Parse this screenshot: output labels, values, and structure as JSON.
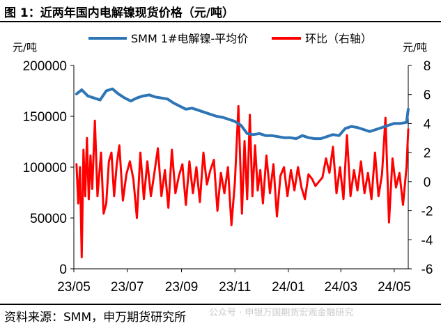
{
  "header": {
    "figure_label": "图 1：",
    "title": "近两年国内电解镍现货价格（元/吨）"
  },
  "footer": {
    "source": "资料来源：SMM，申万期货研究所",
    "watermark": "公众号 · 申银万国期货宏观金融研究"
  },
  "chart_data": {
    "type": "line",
    "left_axis_unit": "元/吨",
    "right_axis_unit": "元/吨",
    "y_left_ticks": [
      "200000",
      "150000",
      "100000",
      "50000",
      "0"
    ],
    "y_right_ticks": [
      "8",
      "6",
      "4",
      "2",
      "0",
      "-2",
      "-4",
      "-6"
    ],
    "x_ticks": [
      "23/05",
      "23/07",
      "23/09",
      "23/11",
      "24/01",
      "24/03",
      "24/05"
    ],
    "ylim_left": [
      0,
      200000
    ],
    "ylim_right": [
      -6,
      8
    ],
    "x_range": [
      "2023-05-01",
      "2024-05-17"
    ],
    "grid": false,
    "legend_position": "top",
    "series": [
      {
        "name": "SMM 1#电解镍-平均价",
        "axis": "left",
        "color": "#2E75B6",
        "x": [
          "2023-05-04",
          "2023-05-10",
          "2023-05-17",
          "2023-05-24",
          "2023-05-31",
          "2023-06-07",
          "2023-06-14",
          "2023-06-21",
          "2023-06-28",
          "2023-07-05",
          "2023-07-12",
          "2023-07-19",
          "2023-07-26",
          "2023-08-02",
          "2023-08-09",
          "2023-08-16",
          "2023-08-23",
          "2023-08-30",
          "2023-09-06",
          "2023-09-13",
          "2023-09-20",
          "2023-09-27",
          "2023-10-11",
          "2023-10-18",
          "2023-10-25",
          "2023-11-01",
          "2023-11-08",
          "2023-11-15",
          "2023-11-22",
          "2023-11-29",
          "2023-12-06",
          "2023-12-13",
          "2023-12-20",
          "2023-12-27",
          "2024-01-03",
          "2024-01-10",
          "2024-01-17",
          "2024-01-24",
          "2024-01-31",
          "2024-02-07",
          "2024-02-21",
          "2024-02-28",
          "2024-03-06",
          "2024-03-13",
          "2024-03-20",
          "2024-03-27",
          "2024-04-03",
          "2024-04-10",
          "2024-04-17",
          "2024-04-24",
          "2024-05-01",
          "2024-05-08",
          "2024-05-15",
          "2024-05-17"
        ],
        "values": [
          172000,
          176000,
          170000,
          168000,
          166000,
          175000,
          177000,
          172000,
          168000,
          165000,
          168000,
          170000,
          171000,
          169000,
          168000,
          167000,
          163000,
          160000,
          157000,
          158000,
          156000,
          154000,
          150000,
          149000,
          147000,
          145000,
          141000,
          133000,
          132000,
          133000,
          131000,
          131000,
          130000,
          129000,
          129000,
          128000,
          131000,
          129000,
          128000,
          128000,
          132000,
          131000,
          138000,
          140000,
          139000,
          137000,
          135000,
          137000,
          139000,
          141000,
          143000,
          143000,
          144000,
          157000
        ]
      },
      {
        "name": "环比（右轴）",
        "axis": "right",
        "color": "#FF0000",
        "x": [
          "2023-05-04",
          "2023-05-06",
          "2023-05-08",
          "2023-05-10",
          "2023-05-12",
          "2023-05-14",
          "2023-05-16",
          "2023-05-18",
          "2023-05-20",
          "2023-05-22",
          "2023-05-25",
          "2023-05-28",
          "2023-06-01",
          "2023-06-04",
          "2023-06-07",
          "2023-06-10",
          "2023-06-13",
          "2023-06-16",
          "2023-06-19",
          "2023-06-22",
          "2023-06-26",
          "2023-06-30",
          "2023-07-04",
          "2023-07-08",
          "2023-07-12",
          "2023-07-16",
          "2023-07-20",
          "2023-07-24",
          "2023-07-28",
          "2023-08-01",
          "2023-08-05",
          "2023-08-09",
          "2023-08-13",
          "2023-08-17",
          "2023-08-21",
          "2023-08-25",
          "2023-08-29",
          "2023-09-02",
          "2023-09-06",
          "2023-09-10",
          "2023-09-14",
          "2023-09-18",
          "2023-09-22",
          "2023-09-26",
          "2023-09-30",
          "2023-10-04",
          "2023-10-08",
          "2023-10-12",
          "2023-10-16",
          "2023-10-20",
          "2023-10-24",
          "2023-10-28",
          "2023-11-01",
          "2023-11-05",
          "2023-11-09",
          "2023-11-12",
          "2023-11-15",
          "2023-11-18",
          "2023-11-21",
          "2023-11-24",
          "2023-11-27",
          "2023-11-30",
          "2023-12-03",
          "2023-12-07",
          "2023-12-11",
          "2023-12-15",
          "2023-12-19",
          "2023-12-23",
          "2023-12-27",
          "2023-12-31",
          "2024-01-04",
          "2024-01-08",
          "2024-01-12",
          "2024-01-16",
          "2024-01-20",
          "2024-01-24",
          "2024-01-28",
          "2024-02-01",
          "2024-02-05",
          "2024-02-09",
          "2024-02-13",
          "2024-02-17",
          "2024-02-21",
          "2024-02-25",
          "2024-02-29",
          "2024-03-04",
          "2024-03-08",
          "2024-03-12",
          "2024-03-16",
          "2024-03-20",
          "2024-03-24",
          "2024-03-28",
          "2024-04-01",
          "2024-04-05",
          "2024-04-09",
          "2024-04-13",
          "2024-04-17",
          "2024-04-21",
          "2024-04-25",
          "2024-04-29",
          "2024-05-03",
          "2024-05-07",
          "2024-05-11",
          "2024-05-15",
          "2024-05-17"
        ],
        "values": [
          1.2,
          -1.5,
          1.0,
          -5.2,
          2.2,
          -1.0,
          3.0,
          -1.2,
          1.8,
          -0.5,
          4.2,
          -1.0,
          2.0,
          -2.2,
          -1.5,
          1.4,
          2.0,
          -1.0,
          1.2,
          2.5,
          -1.3,
          0.5,
          1.4,
          0.2,
          -2.5,
          2.0,
          -1.2,
          1.4,
          -1.0,
          0.6,
          2.3,
          -1.0,
          0.8,
          -1.8,
          2.2,
          -0.8,
          0.4,
          1.2,
          -1.6,
          1.4,
          -0.8,
          1.0,
          -1.4,
          2.0,
          -0.2,
          0.8,
          1.5,
          -2.0,
          0.6,
          -0.8,
          1.0,
          -3.0,
          0.0,
          5.2,
          -2.2,
          2.8,
          -1.2,
          4.6,
          -1.0,
          2.5,
          -0.6,
          0.8,
          -1.5,
          1.8,
          -0.8,
          1.2,
          -2.4,
          0.4,
          1.0,
          -1.0,
          0.8,
          -0.6,
          1.0,
          -0.4,
          -1.2,
          0.5,
          0.2,
          -0.3,
          0.0,
          0.3,
          1.6,
          0.6,
          2.4,
          -0.8,
          1.0,
          -1.2,
          3.2,
          -1.0,
          0.8,
          -0.6,
          1.4,
          -0.8,
          0.6,
          -1.2,
          2.0,
          -1.0,
          0.5,
          4.4,
          -2.8,
          1.6,
          -0.4,
          0.6,
          -1.6,
          1.0,
          3.6
        ]
      }
    ]
  }
}
